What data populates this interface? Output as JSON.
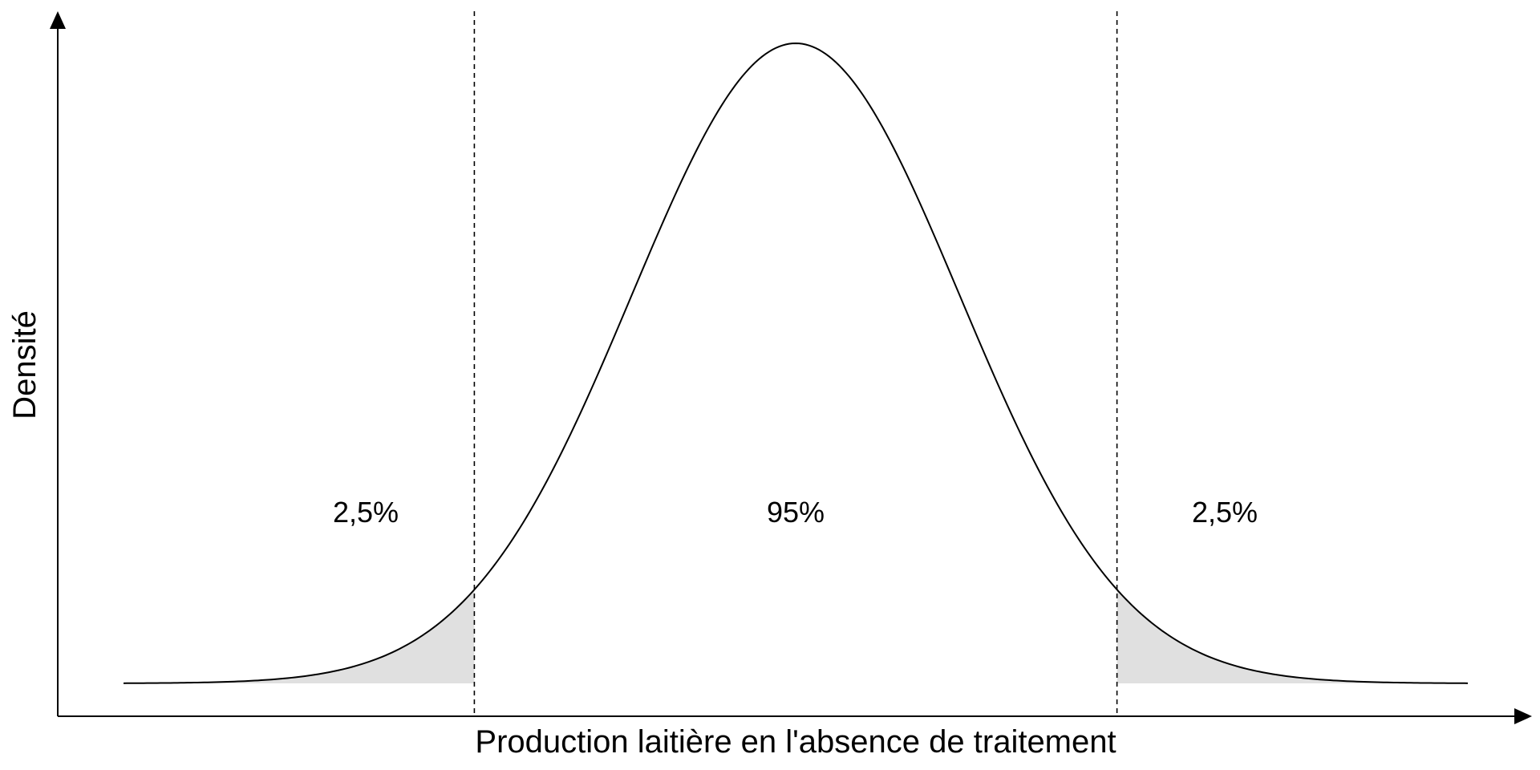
{
  "chart_data": {
    "type": "area",
    "title": "",
    "xlabel": "Production laitière en l'absence de traitement",
    "ylabel": "Densité",
    "x_ticks": [],
    "y_ticks": [],
    "grid": false,
    "distribution": "normal",
    "mean": 0,
    "sd": 1,
    "xlim": [
      -4.1,
      4.1
    ],
    "critical_values": [
      -1.96,
      1.96
    ],
    "regions": [
      {
        "name": "left-tail",
        "label": "2,5%",
        "from": -4.1,
        "to": -1.96,
        "shaded": true
      },
      {
        "name": "center",
        "label": "95%",
        "from": -1.96,
        "to": 1.96,
        "shaded": false
      },
      {
        "name": "right-tail",
        "label": "2,5%",
        "from": 1.96,
        "to": 4.1,
        "shaded": true
      }
    ]
  },
  "colors": {
    "tail_fill": "#e0e0e0",
    "line": "#000000"
  }
}
